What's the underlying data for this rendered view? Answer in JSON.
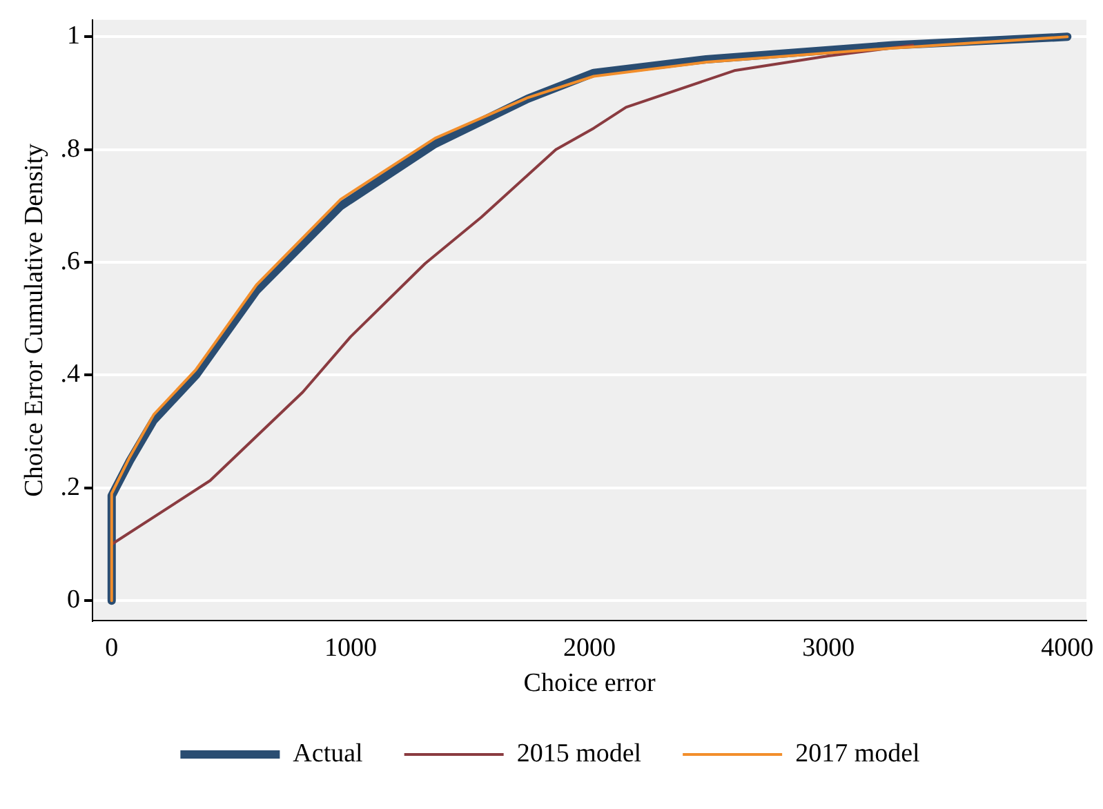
{
  "chart_data": {
    "type": "line",
    "xlabel": "Choice error",
    "ylabel": "Choice Error Cumulative Density",
    "xlim": [
      -80,
      4080
    ],
    "ylim": [
      -0.035,
      1.03
    ],
    "xticks": [
      0,
      1000,
      2000,
      3000,
      4000
    ],
    "yticks": [
      0,
      {
        "value": 0.2,
        "label": ".2"
      },
      {
        "value": 0.4,
        "label": ".4"
      },
      {
        "value": 0.6,
        "label": ".6"
      },
      {
        "value": 0.8,
        "label": ".8"
      },
      1
    ],
    "grid": "y",
    "legend": "bottom",
    "marker": "none",
    "line_style": "solid",
    "series": [
      {
        "name": "Actual",
        "color": "#2a4d72",
        "x": [
          0,
          0,
          76,
          176,
          353,
          606,
          959,
          1353,
          1741,
          2018,
          2488,
          3271,
          4000
        ],
        "values": [
          0,
          0.186,
          0.248,
          0.32,
          0.4,
          0.55,
          0.7,
          0.81,
          0.89,
          0.936,
          0.96,
          0.985,
          1.0
        ]
      },
      {
        "name": "2015 model",
        "color": "#8a3b40",
        "x": [
          0,
          412,
          800,
          1000,
          1312,
          1547,
          1859,
          2018,
          2153,
          2606,
          3000,
          3353
        ],
        "values": [
          0.1,
          0.213,
          0.37,
          0.468,
          0.598,
          0.68,
          0.8,
          0.838,
          0.875,
          0.94,
          0.966,
          0.985
        ]
      },
      {
        "name": "2017 model",
        "color": "#f28e2b",
        "x": [
          0,
          0,
          76,
          176,
          353,
          606,
          959,
          1353,
          1741,
          2018,
          2488,
          3271,
          4000
        ],
        "values": [
          0,
          0.19,
          0.255,
          0.33,
          0.41,
          0.56,
          0.712,
          0.82,
          0.892,
          0.93,
          0.955,
          0.98,
          1.0
        ]
      }
    ]
  }
}
